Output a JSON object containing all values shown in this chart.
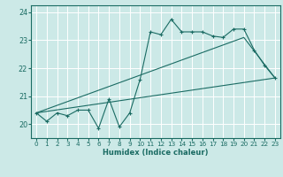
{
  "xlabel": "Humidex (Indice chaleur)",
  "ylabel": "",
  "bg_color": "#cce9e7",
  "line_color": "#1a6b63",
  "grid_color": "#ffffff",
  "xlim": [
    -0.5,
    23.5
  ],
  "ylim": [
    19.5,
    24.25
  ],
  "yticks": [
    20,
    21,
    22,
    23,
    24
  ],
  "xticks": [
    0,
    1,
    2,
    3,
    4,
    5,
    6,
    7,
    8,
    9,
    10,
    11,
    12,
    13,
    14,
    15,
    16,
    17,
    18,
    19,
    20,
    21,
    22,
    23
  ],
  "line1_x": [
    0,
    1,
    2,
    3,
    4,
    5,
    6,
    7,
    8,
    9,
    10,
    11,
    12,
    13,
    14,
    15,
    16,
    17,
    18,
    19,
    20,
    21,
    22,
    23
  ],
  "line1_y": [
    20.4,
    20.1,
    20.4,
    20.3,
    20.5,
    20.5,
    19.85,
    20.9,
    19.9,
    20.4,
    21.6,
    23.3,
    23.2,
    23.75,
    23.3,
    23.3,
    23.3,
    23.15,
    23.1,
    23.4,
    23.4,
    22.65,
    22.1,
    21.65
  ],
  "line2_x": [
    0,
    10,
    20,
    23
  ],
  "line2_y": [
    20.4,
    21.75,
    23.1,
    21.65
  ],
  "line3_x": [
    0,
    23
  ],
  "line3_y": [
    20.4,
    21.65
  ]
}
